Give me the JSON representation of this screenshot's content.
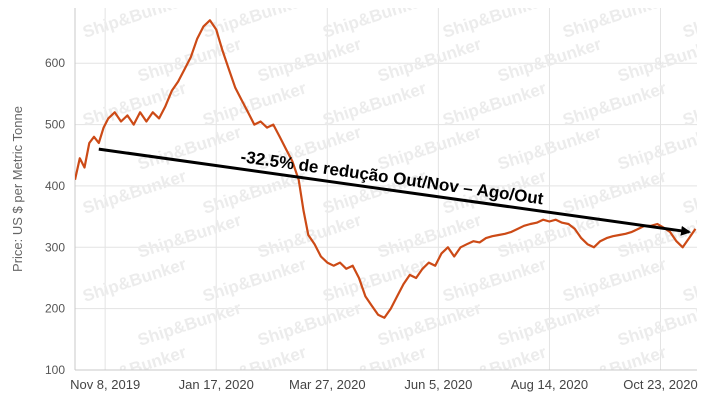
{
  "chart_data": {
    "type": "line",
    "title": "",
    "xlabel": "",
    "ylabel": "Price: US $ per Metric Tonne",
    "ylim": [
      100,
      690
    ],
    "yticks": [
      100,
      200,
      300,
      400,
      500,
      600
    ],
    "grid": true,
    "legend": "none",
    "watermark": "Ship&Bunker",
    "xlim": [
      "2019-10-20",
      "2020-11-15"
    ],
    "xticks": [
      {
        "date": "2019-11-08",
        "label": "Nov 8, 2019"
      },
      {
        "date": "2020-01-17",
        "label": "Jan 17, 2020"
      },
      {
        "date": "2020-03-27",
        "label": "Mar 27, 2020"
      },
      {
        "date": "2020-06-05",
        "label": "Jun 5, 2020"
      },
      {
        "date": "2020-08-14",
        "label": "Aug 14, 2020"
      },
      {
        "date": "2020-10-23",
        "label": "Oct 23, 2020"
      }
    ],
    "series": [
      {
        "color": "#cc4a16",
        "points": [
          [
            "2019-10-20",
            410
          ],
          [
            "2019-10-23",
            445
          ],
          [
            "2019-10-26",
            430
          ],
          [
            "2019-10-29",
            470
          ],
          [
            "2019-11-01",
            480
          ],
          [
            "2019-11-04",
            470
          ],
          [
            "2019-11-07",
            495
          ],
          [
            "2019-11-10",
            510
          ],
          [
            "2019-11-14",
            520
          ],
          [
            "2019-11-18",
            505
          ],
          [
            "2019-11-22",
            515
          ],
          [
            "2019-11-26",
            500
          ],
          [
            "2019-11-30",
            520
          ],
          [
            "2019-12-04",
            505
          ],
          [
            "2019-12-08",
            520
          ],
          [
            "2019-12-12",
            510
          ],
          [
            "2019-12-16",
            530
          ],
          [
            "2019-12-20",
            555
          ],
          [
            "2019-12-24",
            570
          ],
          [
            "2019-12-28",
            590
          ],
          [
            "2020-01-01",
            610
          ],
          [
            "2020-01-05",
            640
          ],
          [
            "2020-01-09",
            660
          ],
          [
            "2020-01-13",
            670
          ],
          [
            "2020-01-17",
            655
          ],
          [
            "2020-01-21",
            620
          ],
          [
            "2020-01-25",
            590
          ],
          [
            "2020-01-29",
            560
          ],
          [
            "2020-02-02",
            540
          ],
          [
            "2020-02-06",
            520
          ],
          [
            "2020-02-10",
            500
          ],
          [
            "2020-02-14",
            505
          ],
          [
            "2020-02-18",
            495
          ],
          [
            "2020-02-22",
            500
          ],
          [
            "2020-02-26",
            480
          ],
          [
            "2020-03-01",
            460
          ],
          [
            "2020-03-05",
            440
          ],
          [
            "2020-03-09",
            410
          ],
          [
            "2020-03-12",
            360
          ],
          [
            "2020-03-15",
            320
          ],
          [
            "2020-03-19",
            305
          ],
          [
            "2020-03-23",
            285
          ],
          [
            "2020-03-27",
            275
          ],
          [
            "2020-03-31",
            270
          ],
          [
            "2020-04-04",
            275
          ],
          [
            "2020-04-08",
            265
          ],
          [
            "2020-04-12",
            270
          ],
          [
            "2020-04-16",
            250
          ],
          [
            "2020-04-20",
            220
          ],
          [
            "2020-04-24",
            205
          ],
          [
            "2020-04-28",
            190
          ],
          [
            "2020-05-02",
            185
          ],
          [
            "2020-05-06",
            200
          ],
          [
            "2020-05-10",
            220
          ],
          [
            "2020-05-14",
            240
          ],
          [
            "2020-05-18",
            255
          ],
          [
            "2020-05-22",
            250
          ],
          [
            "2020-05-26",
            265
          ],
          [
            "2020-05-30",
            275
          ],
          [
            "2020-06-03",
            270
          ],
          [
            "2020-06-07",
            290
          ],
          [
            "2020-06-11",
            300
          ],
          [
            "2020-06-15",
            285
          ],
          [
            "2020-06-19",
            300
          ],
          [
            "2020-06-23",
            305
          ],
          [
            "2020-06-27",
            310
          ],
          [
            "2020-07-01",
            308
          ],
          [
            "2020-07-05",
            315
          ],
          [
            "2020-07-09",
            318
          ],
          [
            "2020-07-13",
            320
          ],
          [
            "2020-07-17",
            322
          ],
          [
            "2020-07-21",
            325
          ],
          [
            "2020-07-25",
            330
          ],
          [
            "2020-07-29",
            335
          ],
          [
            "2020-08-02",
            338
          ],
          [
            "2020-08-06",
            340
          ],
          [
            "2020-08-10",
            345
          ],
          [
            "2020-08-14",
            342
          ],
          [
            "2020-08-18",
            345
          ],
          [
            "2020-08-22",
            340
          ],
          [
            "2020-08-26",
            338
          ],
          [
            "2020-08-30",
            330
          ],
          [
            "2020-09-03",
            315
          ],
          [
            "2020-09-07",
            305
          ],
          [
            "2020-09-11",
            300
          ],
          [
            "2020-09-15",
            310
          ],
          [
            "2020-09-19",
            315
          ],
          [
            "2020-09-23",
            318
          ],
          [
            "2020-09-27",
            320
          ],
          [
            "2020-10-01",
            322
          ],
          [
            "2020-10-05",
            325
          ],
          [
            "2020-10-09",
            330
          ],
          [
            "2020-10-13",
            335
          ],
          [
            "2020-10-17",
            335
          ],
          [
            "2020-10-21",
            338
          ],
          [
            "2020-10-25",
            332
          ],
          [
            "2020-10-29",
            325
          ],
          [
            "2020-11-02",
            310
          ],
          [
            "2020-11-06",
            300
          ],
          [
            "2020-11-10",
            315
          ],
          [
            "2020-11-14",
            330
          ]
        ]
      }
    ],
    "annotations": [
      {
        "text": "-32.5% de redução Out/Nov – Ago/Out",
        "arrow": {
          "from": [
            "2019-11-04",
            460
          ],
          "to": [
            "2020-11-10",
            325
          ]
        }
      }
    ]
  }
}
